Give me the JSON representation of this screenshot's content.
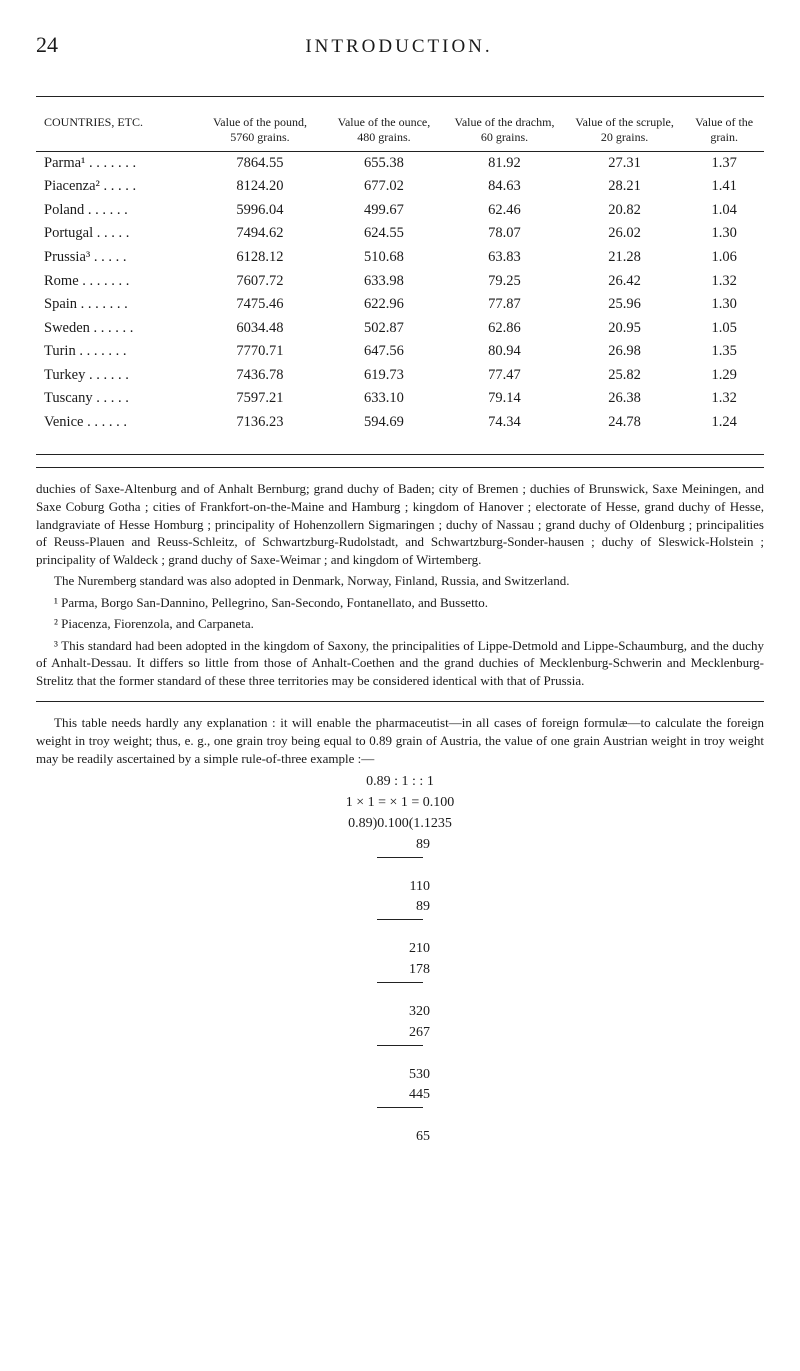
{
  "header": {
    "page_number": "24",
    "title": "INTRODUCTION."
  },
  "table": {
    "columns": [
      "COUNTRIES, ETC.",
      "Value of the pound, 5760 grains.",
      "Value of the ounce, 480 grains.",
      "Value of the drachm, 60 grains.",
      "Value of the scruple, 20 grains.",
      "Value of the grain."
    ],
    "rows": [
      [
        "Parma¹ . . . . . . .",
        "7864.55",
        "655.38",
        "81.92",
        "27.31",
        "1.37"
      ],
      [
        "Piacenza² . . . . .",
        "8124.20",
        "677.02",
        "84.63",
        "28.21",
        "1.41"
      ],
      [
        "Poland  . . . . . .",
        "5996.04",
        "499.67",
        "62.46",
        "20.82",
        "1.04"
      ],
      [
        "Portugal . . . . .",
        "7494.62",
        "624.55",
        "78.07",
        "26.02",
        "1.30"
      ],
      [
        "Prussia³ . . . . .",
        "6128.12",
        "510.68",
        "63.83",
        "21.28",
        "1.06"
      ],
      [
        "Rome . . . . . . .",
        "7607.72",
        "633.98",
        "79.25",
        "26.42",
        "1.32"
      ],
      [
        "Spain . . . . . . .",
        "7475.46",
        "622.96",
        "77.87",
        "25.96",
        "1.30"
      ],
      [
        "Sweden . . . . . .",
        "6034.48",
        "502.87",
        "62.86",
        "20.95",
        "1.05"
      ],
      [
        "Turin . . . . . . .",
        "7770.71",
        "647.56",
        "80.94",
        "26.98",
        "1.35"
      ],
      [
        "Turkey . . . . . .",
        "7436.78",
        "619.73",
        "77.47",
        "25.82",
        "1.29"
      ],
      [
        "Tuscany . . . . .",
        "7597.21",
        "633.10",
        "79.14",
        "26.38",
        "1.32"
      ],
      [
        "Venice . . . . . .",
        "7136.23",
        "594.69",
        "74.34",
        "24.78",
        "1.24"
      ]
    ]
  },
  "note1": "duchies of Saxe-Altenburg and of Anhalt Bernburg; grand duchy of Baden; city of Bremen ; duchies of Brunswick, Saxe Meiningen, and Saxe Coburg Gotha ; cities of Frankfort-on-the-Maine and Hamburg ; kingdom of Hanover ; electorate of Hesse, grand duchy of Hesse, landgraviate of Hesse Homburg ; principality of Hohenzollern Sigmaringen ; duchy of Nassau ; grand duchy of Oldenburg ; principalities of Reuss-Plauen and Reuss-Schleitz, of Schwartzburg-Rudolstadt, and Schwartzburg-Sonder-hausen ; duchy of Sleswick-Holstein ; principality of Waldeck ; grand duchy of Saxe-Weimar ; and kingdom of Wirtemberg.",
  "note2": "The Nuremberg standard was also adopted in Denmark, Norway, Finland, Russia, and Switzerland.",
  "fn1": "¹ Parma, Borgo San-Dannino, Pellegrino, San-Secondo, Fontanellato, and Bussetto.",
  "fn2": "² Piacenza, Fiorenzola, and Carpaneta.",
  "fn3": "³ This standard had been adopted in the kingdom of Saxony, the principalities of Lippe-Detmold and Lippe-Schaumburg, and the duchy of Anhalt-Dessau. It differs so little from those of Anhalt-Coethen and the grand duchies of Mecklenburg-Schwerin and Mecklenburg-Strelitz that the former standard of these three territories may be considered identical with that of Prussia.",
  "para2": "This table needs hardly any explanation : it will enable the pharmaceutist—in all cases of foreign formulæ—to calculate the foreign weight in troy weight; thus, e. g., one grain troy being equal to 0.89 grain of Austria, the value of one grain Austrian weight in troy weight may be readily ascertained by a simple rule-of-three example :—",
  "calc": {
    "l1": "0.89 : 1 : : 1",
    "l2": "1 × 1 = × 1 = 0.100",
    "l3": "0.89)0.100(1.1235",
    "steps": [
      "89",
      "110",
      "89",
      "210",
      "178",
      "320",
      "267",
      "530",
      "445",
      "65"
    ]
  }
}
